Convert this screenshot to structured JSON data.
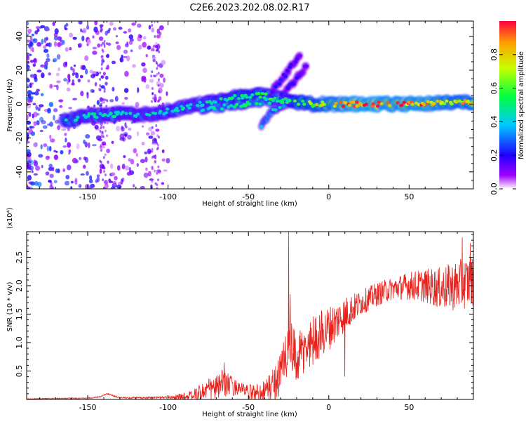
{
  "chart_data": [
    {
      "type": "heatmap",
      "title": "C2E6.2023.202.08.02.R17",
      "xlabel": "Height of straight line (km)",
      "ylabel": "Frequency (Hz)",
      "xlim": [
        -188,
        90
      ],
      "ylim": [
        -50,
        49
      ],
      "xticks": [
        -150,
        -100,
        -50,
        0,
        50
      ],
      "yticks": [
        -40,
        -20,
        0,
        20,
        40
      ],
      "colorbar": {
        "label": "Normalized spectral amplitude",
        "range": [
          0,
          1
        ],
        "ticks": [
          "0.0",
          "0.2",
          "0.4",
          "0.6",
          "0.8"
        ],
        "tick_values": [
          0.0,
          0.2,
          0.4,
          0.6,
          0.8
        ],
        "colors": [
          "#ffffff",
          "#a000ff",
          "#2000ff",
          "#00c8ff",
          "#00ff40",
          "#c8ff00",
          "#ffa000",
          "#ff0040"
        ]
      },
      "features": [
        {
          "feature": "main trace",
          "points": [
            [
              -165,
              -10
            ],
            [
              -150,
              -7
            ],
            [
              -130,
              -6
            ],
            [
              -110,
              -6
            ],
            [
              -95,
              -3
            ],
            [
              -80,
              0
            ],
            [
              -65,
              3
            ],
            [
              -50,
              5
            ],
            [
              -40,
              5
            ],
            [
              -30,
              3
            ],
            [
              -20,
              1
            ],
            [
              -10,
              0
            ],
            [
              0,
              0
            ],
            [
              20,
              0
            ],
            [
              40,
              0
            ],
            [
              60,
              0
            ],
            [
              75,
              1
            ],
            [
              90,
              1
            ]
          ],
          "amplitude": [
            0.5,
            0.45,
            0.45,
            0.42,
            0.45,
            0.45,
            0.5,
            0.55,
            0.55,
            0.5,
            0.6,
            0.7,
            0.8,
            0.95,
            0.9,
            0.9,
            0.8,
            0.8
          ]
        },
        {
          "feature": "lower branch",
          "points": [
            [
              -80,
              -3
            ],
            [
              -60,
              -1
            ],
            [
              -45,
              1
            ],
            [
              -35,
              2
            ],
            [
              -25,
              2
            ]
          ],
          "amplitude": [
            0.45,
            0.5,
            0.5,
            0.5,
            0.45
          ]
        },
        {
          "feature": "rising streak",
          "points": [
            [
              -35,
              8
            ],
            [
              -28,
              16
            ],
            [
              -22,
              24
            ],
            [
              -18,
              28
            ]
          ],
          "amplitude": [
            0.25,
            0.2,
            0.18,
            0.15
          ]
        },
        {
          "feature": "rising streak",
          "points": [
            [
              -30,
              4
            ],
            [
              -24,
              10
            ],
            [
              -20,
              16
            ],
            [
              -14,
              22
            ]
          ],
          "amplitude": [
            0.25,
            0.2,
            0.18,
            0.15
          ]
        },
        {
          "feature": "descending streak",
          "points": [
            [
              -42,
              -12
            ],
            [
              -35,
              -4
            ],
            [
              -28,
              0
            ]
          ],
          "amplitude": [
            0.4,
            0.45,
            0.4
          ]
        }
      ],
      "noise": {
        "x_range": [
          -188,
          -100
        ],
        "y_range": [
          -50,
          49
        ],
        "amplitude_max": 0.3
      }
    },
    {
      "type": "line",
      "xlabel": "Height of straight line (km)",
      "ylabel": "SNR (10 * v/v)",
      "y_multiplier": "(x10⁴)",
      "xlim": [
        -188,
        90
      ],
      "ylim": [
        0,
        2.95
      ],
      "xticks": [
        -150,
        -100,
        -50,
        0,
        50
      ],
      "yticks": [
        0.5,
        1.0,
        1.5,
        2.0,
        2.5
      ],
      "ytick_labels": [
        "0.5",
        "1.0",
        "1.5",
        "2.0",
        "2.5"
      ],
      "series": [
        {
          "color": "#e8221c",
          "baseline": {
            "x": [
              -188,
              -170,
              -150,
              -142,
              -138,
              -130,
              -110,
              -95,
              -85,
              -80,
              -75,
              -70,
              -65,
              -60,
              -55,
              -50,
              -45,
              -40,
              -35,
              -30,
              -27,
              -24,
              -22,
              -20,
              -15,
              -10,
              -5,
              0,
              10,
              20,
              30,
              40,
              50,
              60,
              70,
              80,
              90
            ],
            "y": [
              0.01,
              0.02,
              0.02,
              0.05,
              0.1,
              0.03,
              0.03,
              0.04,
              0.06,
              0.12,
              0.18,
              0.2,
              0.3,
              0.22,
              0.2,
              0.12,
              0.12,
              0.15,
              0.25,
              0.45,
              0.8,
              1.0,
              0.75,
              0.7,
              0.85,
              1.05,
              1.15,
              1.25,
              1.5,
              1.7,
              1.85,
              1.95,
              2.0,
              2.0,
              1.95,
              2.0,
              2.1
            ]
          },
          "noise": {
            "x": [
              -188,
              -150,
              -100,
              -85,
              -75,
              -65,
              -55,
              -40,
              -30,
              -25,
              -20,
              -10,
              0,
              20,
              40,
              60,
              80,
              90
            ],
            "amp": [
              0.005,
              0.01,
              0.02,
              0.1,
              0.2,
              0.25,
              0.1,
              0.2,
              0.4,
              0.6,
              0.45,
              0.45,
              0.4,
              0.22,
              0.2,
              0.3,
              0.45,
              0.45
            ]
          },
          "peaks": [
            {
              "x": -25,
              "y": 2.95
            },
            {
              "x": -24,
              "y": 1.85
            },
            {
              "x": -65,
              "y": 0.65
            },
            {
              "x": 10,
              "y": 0.4
            },
            {
              "x": 83,
              "y": 2.85
            },
            {
              "x": 88,
              "y": 2.75
            }
          ]
        }
      ]
    }
  ]
}
